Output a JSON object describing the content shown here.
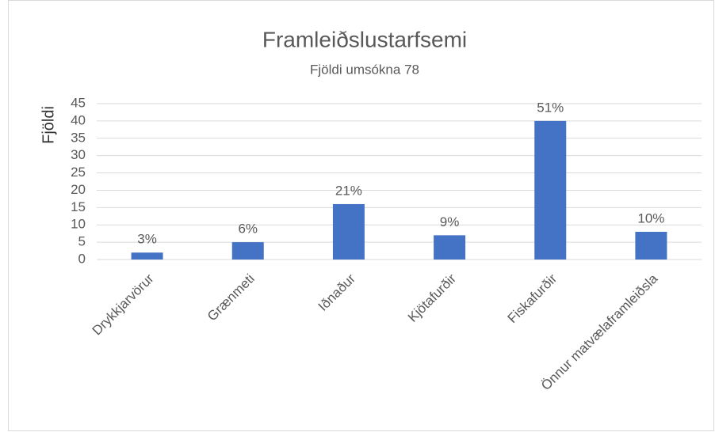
{
  "chart_data": {
    "type": "bar",
    "title": "Framleiðslustarfsemi",
    "subtitle": "Fjöldi umsókna 78",
    "y_label": "Fjöldi",
    "categories": [
      "Drykkjarvörur",
      "Grænmeti",
      "Iðnaður",
      "Kjötafurðir",
      "Fiskafurðir",
      "Önnur matvælaframleiðsla"
    ],
    "values": [
      2,
      5,
      16,
      7,
      40,
      8
    ],
    "value_labels": [
      "3%",
      "6%",
      "21%",
      "9%",
      "51%",
      "10%"
    ],
    "color": "#4472c4",
    "ylim": [
      0,
      45
    ],
    "yticks": [
      0,
      5,
      10,
      15,
      20,
      25,
      30,
      35,
      40,
      45
    ],
    "grid": true
  }
}
